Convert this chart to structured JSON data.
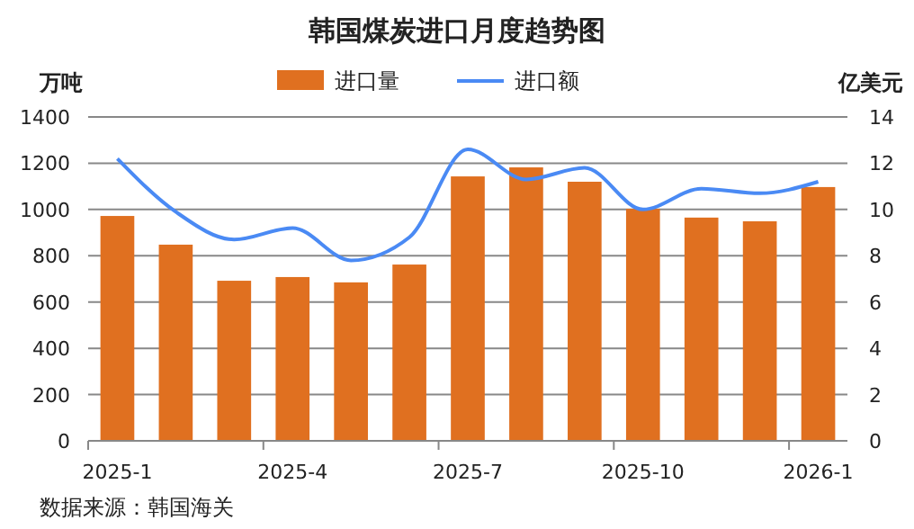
{
  "chart_data": {
    "type": "bar",
    "title": "韩国煤炭进口月度趋势图",
    "ylabel": "万吨",
    "y2label": "亿美元",
    "categories": [
      "2025-1",
      null,
      null,
      "2025-4",
      null,
      null,
      "2025-7",
      null,
      null,
      "2025-10",
      null,
      null,
      "2026-1"
    ],
    "series": [
      {
        "name": "进口量",
        "color": "#e07020",
        "values": [
          972,
          848,
          692,
          708,
          685,
          762,
          1143,
          1182,
          1120,
          1003,
          965,
          949,
          1097
        ]
      },
      {
        "name": "进口额",
        "type": "line",
        "axis": "y2",
        "color": "#4a8af4",
        "values": [
          12.2,
          9.9,
          8.7,
          9.2,
          7.8,
          8.8,
          12.6,
          11.3,
          11.8,
          10.0,
          10.9,
          10.7,
          11.2
        ]
      }
    ],
    "ylim": [
      0,
      1400
    ],
    "yticks": [
      0,
      200,
      400,
      600,
      800,
      1000,
      1200,
      1400
    ],
    "y2lim": [
      0,
      14
    ],
    "y2ticks": [
      0,
      2,
      4,
      6,
      8,
      10,
      12,
      14
    ],
    "grid": "y",
    "legend": "top",
    "marker": "none",
    "line_style": "solid",
    "annotations": [
      "数据来源：韩国海关"
    ]
  }
}
